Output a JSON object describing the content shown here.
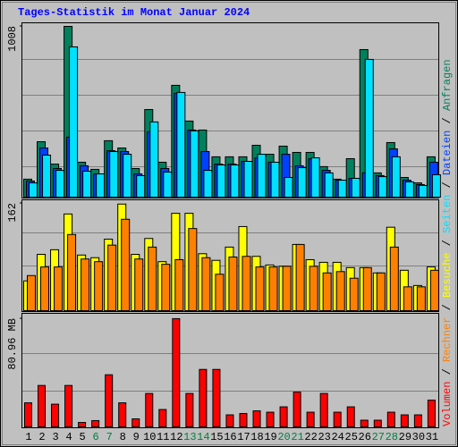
{
  "chart_data": [
    {
      "type": "bar",
      "title": "Tages-Statistik im Monat Januar 2024",
      "legend_separator": " / ",
      "ylim": [
        0,
        1008
      ],
      "yticks": [
        1008
      ],
      "series": [
        {
          "name": "Anfragen",
          "color": "#00805c",
          "values": [
            106,
            327,
            195,
            1008,
            206,
            164,
            333,
            290,
            169,
            517,
            206,
            660,
            449,
            396,
            238,
            238,
            238,
            306,
            253,
            301,
            264,
            264,
            180,
            106,
            227,
            871,
            143,
            322,
            116,
            84,
            238
          ]
        },
        {
          "name": "Dateien",
          "color": "#0040ff",
          "values": [
            95,
            290,
            169,
            354,
            185,
            137,
            274,
            269,
            137,
            386,
            169,
            613,
            396,
            269,
            195,
            195,
            211,
            232,
            206,
            253,
            185,
            227,
            158,
            100,
            111,
            143,
            127,
            285,
            100,
            74,
            206
          ]
        },
        {
          "name": "Seiten",
          "color": "#00e0ff",
          "values": [
            84,
            248,
            158,
            887,
            153,
            137,
            269,
            253,
            127,
            444,
            148,
            618,
            391,
            158,
            190,
            190,
            211,
            253,
            206,
            116,
            174,
            232,
            143,
            100,
            111,
            813,
            121,
            238,
            90,
            69,
            132
          ]
        }
      ]
    },
    {
      "type": "bar",
      "ylim": [
        0,
        162
      ],
      "yticks": [
        162
      ],
      "series": [
        {
          "name": "Besuche",
          "color": "#ffff00",
          "values": [
            45,
            85,
            92,
            146,
            84,
            80,
            108,
            161,
            85,
            109,
            74,
            147,
            147,
            86,
            76,
            96,
            127,
            82,
            69,
            67,
            100,
            77,
            73,
            73,
            65,
            65,
            57,
            126,
            61,
            38,
            66
          ]
        },
        {
          "name": "Rechner",
          "color": "#ff8000",
          "values": [
            53,
            66,
            66,
            115,
            78,
            74,
            99,
            138,
            78,
            96,
            70,
            77,
            124,
            80,
            55,
            81,
            82,
            66,
            66,
            67,
            100,
            67,
            57,
            59,
            49,
            65,
            57,
            96,
            36,
            36,
            61
          ]
        }
      ]
    },
    {
      "type": "bar",
      "ylim": [
        0,
        80.96
      ],
      "yticks": [
        {
          "value": 80.96,
          "label": "80.96 MB"
        }
      ],
      "series": [
        {
          "name": "Volumen",
          "color": "#ff0000",
          "values": [
            18,
            31,
            17,
            31,
            3.3,
            4.7,
            39,
            18,
            6,
            25,
            13,
            81,
            25,
            43,
            43,
            9,
            10,
            12,
            11,
            15,
            26,
            11,
            25,
            11,
            15,
            5,
            5,
            11,
            9,
            9,
            20
          ]
        }
      ],
      "categories": [
        "1",
        "2",
        "3",
        "4",
        "5",
        "6",
        "7",
        "8",
        "9",
        "10",
        "11",
        "12",
        "13",
        "14",
        "15",
        "16",
        "17",
        "18",
        "19",
        "20",
        "21",
        "22",
        "23",
        "24",
        "25",
        "26",
        "27",
        "28",
        "29",
        "30",
        "31"
      ],
      "category_colors": [
        "#000",
        "#000",
        "#000",
        "#000",
        "#000",
        "#008040",
        "#008040",
        "#000",
        "#000",
        "#000",
        "#000",
        "#000",
        "#008040",
        "#008040",
        "#000",
        "#000",
        "#000",
        "#000",
        "#000",
        "#008040",
        "#008040",
        "#000",
        "#000",
        "#000",
        "#000",
        "#000",
        "#008040",
        "#008040",
        "#000",
        "#000",
        "#000"
      ]
    }
  ]
}
